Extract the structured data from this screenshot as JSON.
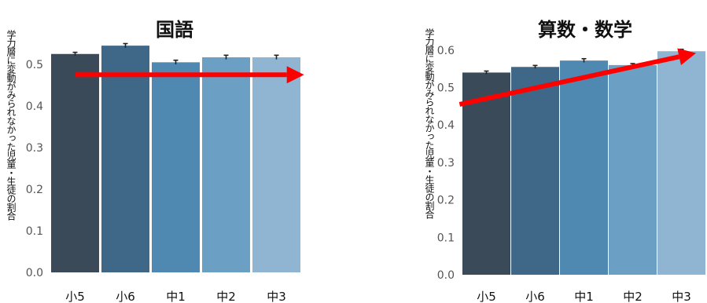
{
  "chart_data": [
    {
      "type": "bar",
      "title": "国語",
      "ylabel": "学力層に変動がみられなかった児童・生徒の割合",
      "categories": [
        "小5",
        "小6",
        "中1",
        "中2",
        "中3"
      ],
      "values": [
        0.525,
        0.545,
        0.505,
        0.517,
        0.517
      ],
      "errors": [
        0.004,
        0.005,
        0.005,
        0.005,
        0.005
      ],
      "yticks": [
        "0.0",
        "0.1",
        "0.2",
        "0.3",
        "0.4",
        "0.5"
      ],
      "ylim": [
        0,
        0.58
      ],
      "grid": false,
      "colors": [
        "#3a4a58",
        "#3f6888",
        "#4f89b2",
        "#6b9fc4",
        "#8fb5d2"
      ],
      "trend_arrow": {
        "color": "#ff0000",
        "from": [
          0,
          0.475
        ],
        "to": [
          4.55,
          0.475
        ]
      }
    },
    {
      "type": "bar",
      "title": "算数・数学",
      "ylabel": "学力層に変動がみられなかった児童・生徒の割合",
      "categories": [
        "小5",
        "小6",
        "中1",
        "中2",
        "中3"
      ],
      "values": [
        0.54,
        0.555,
        0.572,
        0.56,
        0.597
      ],
      "errors": [
        0.004,
        0.004,
        0.005,
        0.004,
        0.005
      ],
      "yticks": [
        "0.0",
        "0.1",
        "0.2",
        "0.3",
        "0.4",
        "0.5",
        "0.6"
      ],
      "ylim": [
        0,
        0.61
      ],
      "grid": false,
      "colors": [
        "#3a4a58",
        "#3f6888",
        "#4f89b2",
        "#6b9fc4",
        "#8fb5d2"
      ],
      "trend_arrow": {
        "color": "#ff0000",
        "from": [
          -0.55,
          0.455
        ],
        "to": [
          4.3,
          0.592
        ]
      }
    }
  ]
}
